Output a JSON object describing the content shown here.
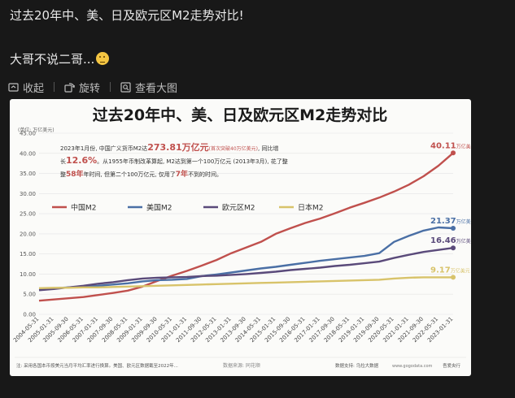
{
  "post": {
    "line1": "过去20年中、美、日及欧元区M2走势对比!",
    "line2": "大哥不说二哥...",
    "emoji": "shrug-emoji"
  },
  "toolbar": {
    "collapse_label": "收起",
    "rotate_label": "旋转",
    "view_large_label": "查看大图"
  },
  "chart_data": {
    "type": "line",
    "title": "过去20年中、美、日及欧元区M2走势对比",
    "unit_label": "(单位: 万亿美元)",
    "ylim": [
      0,
      45
    ],
    "y_ticks": [
      "0.00",
      "5.00",
      "10.00",
      "15.00",
      "20.00",
      "25.00",
      "30.00",
      "35.00",
      "40.00",
      "45.00"
    ],
    "x_ticks": [
      "2004-05-31",
      "2005-01-31",
      "2005-09-30",
      "2006-05-31",
      "2007-01-31",
      "2007-09-30",
      "2008-05-31",
      "2009-01-31",
      "2009-09-30",
      "2010-05-31",
      "2011-01-31",
      "2011-09-30",
      "2012-05-31",
      "2013-01-31",
      "2013-09-30",
      "2014-05-31",
      "2015-01-31",
      "2015-09-30",
      "2016-05-31",
      "2017-01-31",
      "2017-09-30",
      "2018-05-31",
      "2019-01-31",
      "2019-09-30",
      "2020-05-31",
      "2021-01-31",
      "2021-09-30",
      "2022-05-31",
      "2023-01-31"
    ],
    "annotation": {
      "a1": "2023年1月份, 中国广义货币M2达",
      "a2": "273.81万亿元",
      "a3": "(首次突破40万亿美元)",
      "a4": ", 同比增",
      "b1": "长",
      "b2": "12.6%",
      "b3": "。从1955年币制改革算起, M2达到第一个100万亿元 (2013年3月), 花了整",
      "c1": "整",
      "c2": "58年",
      "c3": "年时间, 但第二个100万亿元, 仅用了",
      "c4": "7年",
      "c5": "不到的时间。"
    },
    "series": [
      {
        "name": "中国M2",
        "color": "#c0504d",
        "end_label": "40.11",
        "values": [
          3.4,
          3.7,
          4.0,
          4.3,
          4.8,
          5.3,
          5.9,
          6.9,
          8.3,
          9.6,
          10.8,
          12.1,
          13.5,
          15.2,
          16.6,
          18.0,
          20.0,
          21.4,
          22.7,
          23.8,
          25.1,
          26.5,
          27.7,
          29.0,
          30.5,
          32.2,
          34.3,
          36.9,
          40.1
        ]
      },
      {
        "name": "美国M2",
        "color": "#4a6fa5",
        "end_label": "21.37",
        "values": [
          6.3,
          6.5,
          6.7,
          6.9,
          7.1,
          7.4,
          7.7,
          8.2,
          8.5,
          8.6,
          8.8,
          9.5,
          9.9,
          10.4,
          10.9,
          11.4,
          11.8,
          12.3,
          12.8,
          13.3,
          13.7,
          14.1,
          14.5,
          15.2,
          18.0,
          19.5,
          20.8,
          21.6,
          21.4
        ]
      },
      {
        "name": "欧元区M2",
        "color": "#5a4a7a",
        "end_label": "16.46",
        "values": [
          6.0,
          6.3,
          6.7,
          7.1,
          7.6,
          8.0,
          8.5,
          8.9,
          9.1,
          9.2,
          9.3,
          9.5,
          9.6,
          9.8,
          10.0,
          10.3,
          10.6,
          11.0,
          11.3,
          11.6,
          12.0,
          12.3,
          12.7,
          13.1,
          14.0,
          14.8,
          15.5,
          16.0,
          16.5
        ]
      },
      {
        "name": "日本M2",
        "color": "#d8c36a",
        "end_label": "9.17",
        "values": [
          6.5,
          6.6,
          6.6,
          6.7,
          6.7,
          6.8,
          6.9,
          7.0,
          7.1,
          7.2,
          7.3,
          7.4,
          7.5,
          7.6,
          7.7,
          7.8,
          7.9,
          8.0,
          8.1,
          8.2,
          8.3,
          8.4,
          8.5,
          8.6,
          8.9,
          9.1,
          9.2,
          9.2,
          9.2
        ]
      }
    ],
    "end_unit": "万亿美元",
    "end_unit_short": "万亿美元",
    "footnote": "注: 采用各国本币按美元当月平均汇率进行换算。美国、欧元区数据截至2022年...",
    "source": "数据来源: 同花顺",
    "watermark": "数据支持: 乌拉大数据",
    "site": "www.gogodata.com",
    "brand": "吾爱央行"
  },
  "colors": {
    "background": "#181818",
    "card": "#fbfbf9",
    "title": "#1a1a1a",
    "accent_red": "#c0504d"
  }
}
